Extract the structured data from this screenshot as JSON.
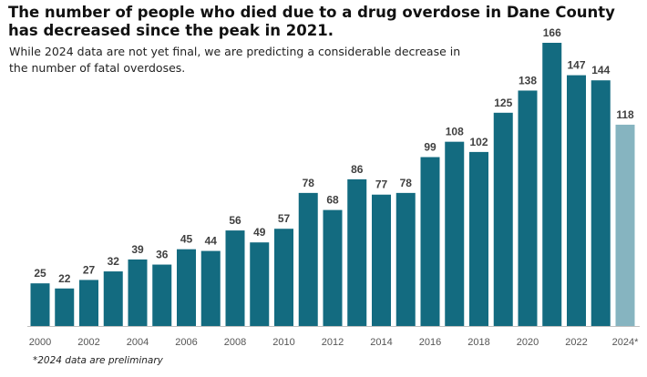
{
  "title": "The number of people who died due to a drug overdose in Dane County has decreased since the peak in 2021.",
  "subtitle": "While 2024 data are not yet final, we are predicting a considerable decrease in the number of fatal overdoses.",
  "footnote": "*2024 data are preliminary",
  "colors": {
    "bar": "#136b80",
    "bar_preliminary": "#86b4c0",
    "axis": "#bfbfbf"
  },
  "chart_data": {
    "type": "bar",
    "categories": [
      "2000",
      "2001",
      "2002",
      "2003",
      "2004",
      "2005",
      "2006",
      "2007",
      "2008",
      "2009",
      "2010",
      "2011",
      "2012",
      "2013",
      "2014",
      "2015",
      "2016",
      "2017",
      "2018",
      "2019",
      "2020",
      "2021",
      "2022",
      "2023",
      "2024*"
    ],
    "values": [
      25,
      22,
      27,
      32,
      39,
      36,
      45,
      44,
      56,
      49,
      57,
      78,
      68,
      86,
      77,
      78,
      99,
      108,
      102,
      125,
      138,
      166,
      147,
      144,
      118
    ],
    "preliminary": [
      "2024*"
    ],
    "tick_labels": [
      "2000",
      "2002",
      "2004",
      "2006",
      "2008",
      "2010",
      "2012",
      "2014",
      "2016",
      "2018",
      "2020",
      "2022",
      "2024*"
    ],
    "xlabel": "",
    "ylabel": "",
    "ylim": [
      0,
      166
    ],
    "grid": false,
    "data_labels": true
  }
}
